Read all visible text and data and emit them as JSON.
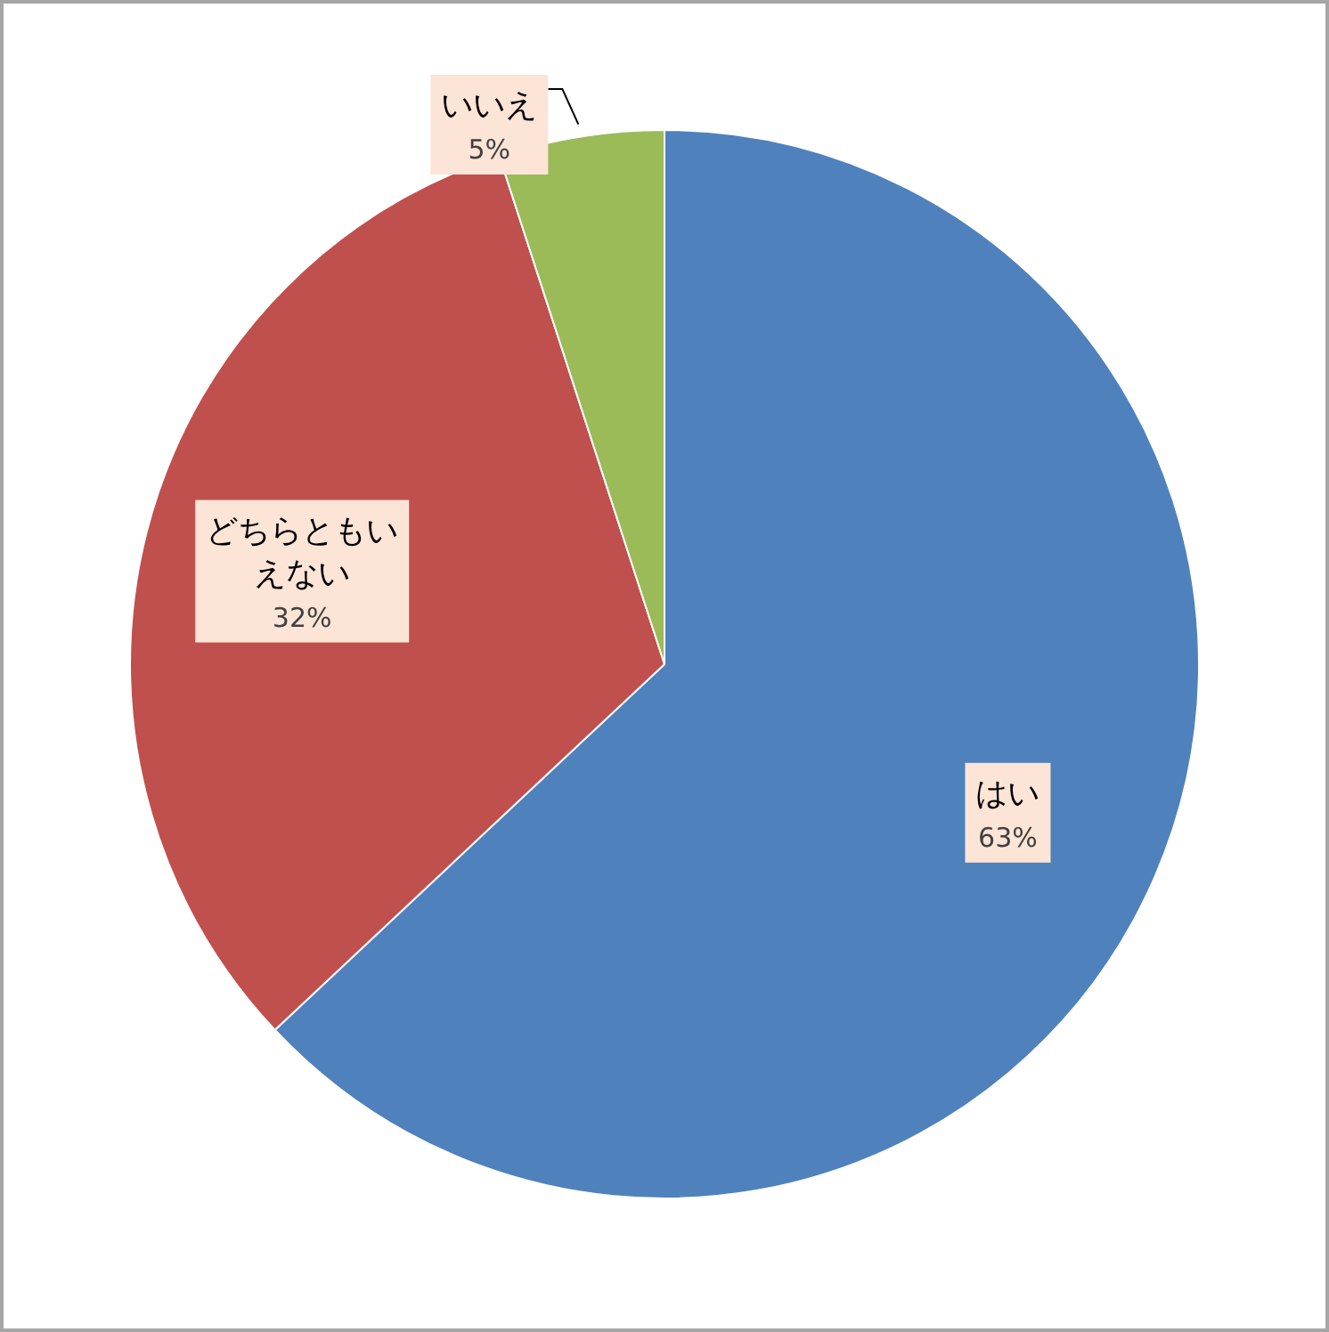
{
  "chart_data": {
    "type": "pie",
    "categories": [
      "はい",
      "どちらともいえない",
      "いいえ"
    ],
    "values": [
      63,
      32,
      5
    ],
    "colors": [
      "#4f81bd",
      "#c0504d",
      "#9bbb59"
    ],
    "value_labels": [
      "63%",
      "32%",
      "5%"
    ]
  }
}
